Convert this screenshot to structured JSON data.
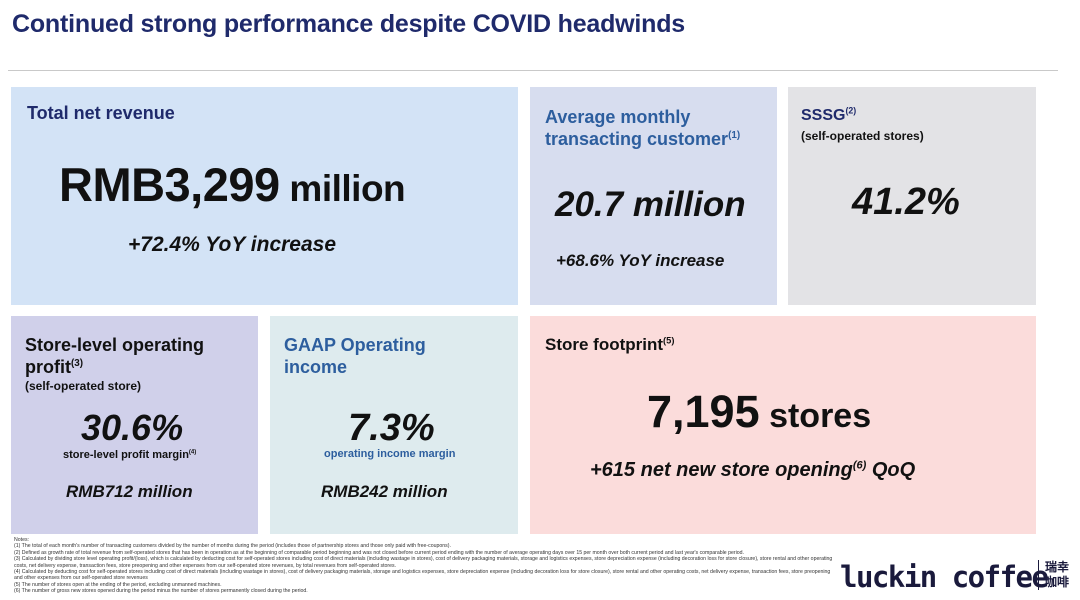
{
  "title": "Continued strong performance despite COVID headwinds",
  "revenue": {
    "label": "Total net revenue",
    "value": "RMB3,299",
    "unit": " million",
    "change": "+72.4% YoY increase"
  },
  "customers": {
    "label_line1": "Average monthly",
    "label_line2": "transacting customer",
    "note_ref": "(1)",
    "value": "20.7 million",
    "change": "+68.6% YoY increase"
  },
  "sssg": {
    "label": "SSSG",
    "note_ref": "(2)",
    "sublabel": "(self-operated stores)",
    "value": "41.2%"
  },
  "store_profit": {
    "label_line1": "Store-level operating",
    "label_line2": "profit",
    "note_ref": "(3)",
    "sublabel": "(self-operated store)",
    "value": "30.6%",
    "caption": "store-level profit margin",
    "caption_ref": "(4)",
    "amount": "RMB712 million"
  },
  "gaap": {
    "label_line1": "GAAP Operating",
    "label_line2": "income",
    "value": "7.3%",
    "caption": "operating income margin",
    "amount": "RMB242 million"
  },
  "footprint": {
    "label": "Store footprint",
    "note_ref": "(5)",
    "value": "7,195",
    "unit": " stores",
    "change_pre": "+615 net new store opening",
    "change_ref": "(6)",
    "change_post": " QoQ"
  },
  "notes": {
    "heading": "Notes:",
    "n1": "(1) The total of each month's number of transacting customers divided by the number of months during the period (includes those of partnership stores and those only paid with free-coupons).",
    "n2": "(2) Defined as growth rate of total revenue from self-operated stores that has been in operation as at the beginning of comparable period beginning and was not closed before current period ending with the number of average operating days over 15 per month over both current period and last year's comparable period.",
    "n3": "(3) Calculated by dividing store level operating profit/(loss), which is calculated by deducting cost for self-operated stores including cost of direct materials (including wastage in stores), cost of delivery packaging materials, storage and logistics expenses, store depreciation expense (including decoration loss for store closure), store rental and other operating costs, net delivery expense, transaction fees, store preopening and other expenses from our self-operated store revenues, by total revenues from self-operated stores.",
    "n4": "(4) Calculated by deducting cost for self-operated stores including cost of direct materials (including wastage in stores), cost of delivery packaging materials, storage and logistics expenses, store depreciation expense (including decoration loss for store closure), store rental and other operating costs, net delivery expense, transaction fees, store preopening and other expenses from our self-operated store revenues",
    "n5": "(5) The number of stores open at the ending of the period, excluding unmanned machines.",
    "n6": "(6) The number of gross new stores opened during the period minus the number of stores permanently closed during the period."
  },
  "logo": {
    "text": "luckin coffee",
    "cn_line1": "瑞幸",
    "cn_line2": "咖啡"
  },
  "colors": {
    "title": "#1f2a6b",
    "accent_blue": "#2d5e9e",
    "card_revenue": "#d3e3f6",
    "card_customers": "#d7ddef",
    "card_sssg": "#e3e3e6",
    "card_profit": "#d0d0ea",
    "card_gaap": "#deebee",
    "card_footprint": "#fbdcdb"
  }
}
